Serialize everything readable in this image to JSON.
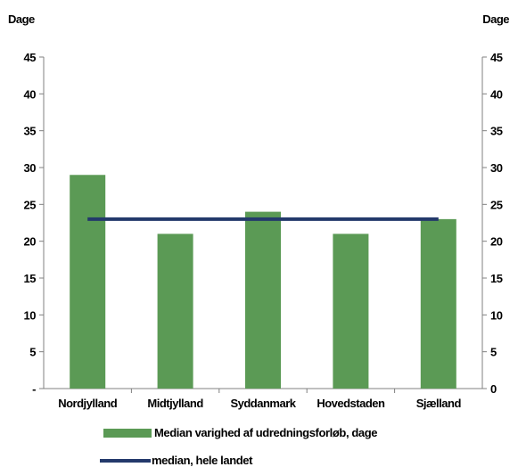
{
  "chart_data": {
    "type": "bar",
    "categories": [
      "Nordjylland",
      "Midtjylland",
      "Syddanmark",
      "Hovedstaden",
      "Sjælland"
    ],
    "series": [
      {
        "name": "Median varighed af udredningsforløb, dage",
        "type": "bar",
        "color": "#5b9a55",
        "values": [
          29,
          21,
          24,
          21,
          23
        ]
      },
      {
        "name": "median, hele landet",
        "type": "line",
        "color": "#23396b",
        "values": [
          23,
          23,
          23,
          23,
          23
        ]
      }
    ],
    "ylabel_left": "Dage",
    "ylabel_right": "Dage",
    "ylim": [
      0,
      45
    ],
    "yticks_left": [
      "-",
      "5",
      "10",
      "15",
      "20",
      "25",
      "30",
      "35",
      "40",
      "45"
    ],
    "yticks_right": [
      "0",
      "5",
      "10",
      "15",
      "20",
      "25",
      "30",
      "35",
      "40",
      "45"
    ],
    "grid": false,
    "legend_position": "bottom"
  }
}
